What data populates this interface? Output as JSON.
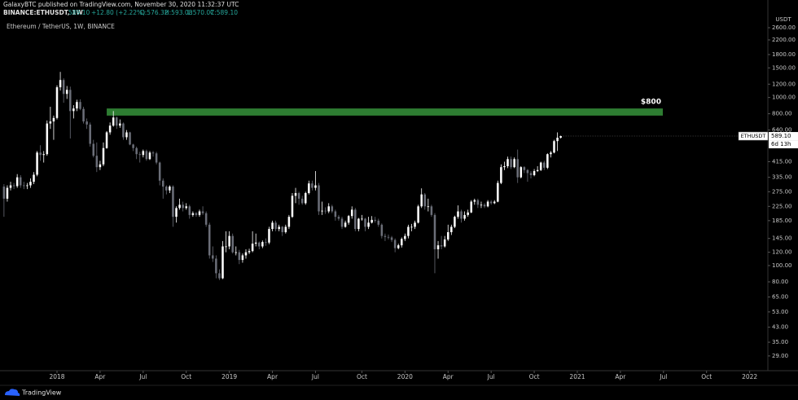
{
  "header": {
    "publisher": "GalaxyBTC published on TradingView.com, November 30, 2020 11:32:37 UTC",
    "symbol": "BINANCE:ETHUSDT, 1W",
    "last": "589.10",
    "change": "+12.80 (+2.22%)",
    "ohlc": [
      "O:576.32",
      "H:593.08",
      "L:570.07",
      "C:589.10"
    ]
  },
  "footer": {
    "brand": "TradingView"
  },
  "chart_data": {
    "type": "candlestick",
    "title": "Ethereum / TetherUS, 1W, BINANCE",
    "y_unit": "USDT",
    "log": true,
    "grid": false,
    "up_color": "#ffffff",
    "down_color": "#6b6e78",
    "ylim": [
      23.7,
      3800
    ],
    "yticks": [
      {
        "value": 2600,
        "label": "2600.00"
      },
      {
        "value": 2200,
        "label": "2200.00"
      },
      {
        "value": 1800,
        "label": "1800.00"
      },
      {
        "value": 1500,
        "label": "1500.00"
      },
      {
        "value": 1200,
        "label": "1200.00"
      },
      {
        "value": 1000,
        "label": "1000.00"
      },
      {
        "value": 800,
        "label": "800.00"
      },
      {
        "value": 640,
        "label": "640.00"
      },
      {
        "value": 415,
        "label": "415.00"
      },
      {
        "value": 335,
        "label": "335.00"
      },
      {
        "value": 275,
        "label": "275.00"
      },
      {
        "value": 225,
        "label": "225.00"
      },
      {
        "value": 185,
        "label": "185.00"
      },
      {
        "value": 145,
        "label": "145.00"
      },
      {
        "value": 120,
        "label": "120.00"
      },
      {
        "value": 100,
        "label": "100.00"
      },
      {
        "value": 80,
        "label": "80.00"
      },
      {
        "value": 65,
        "label": "65.00"
      },
      {
        "value": 53,
        "label": "53.00"
      },
      {
        "value": 43,
        "label": "43.00"
      },
      {
        "value": 35,
        "label": "35.00"
      },
      {
        "value": 29,
        "label": "29.00"
      }
    ],
    "xlim": [
      -1.2,
      230.5
    ],
    "xticks": [
      {
        "value": 16,
        "label": "2018"
      },
      {
        "value": 29,
        "label": "Apr"
      },
      {
        "value": 42,
        "label": "Jul"
      },
      {
        "value": 55,
        "label": "Oct"
      },
      {
        "value": 68,
        "label": "2019"
      },
      {
        "value": 81,
        "label": "Apr"
      },
      {
        "value": 94,
        "label": "Jul"
      },
      {
        "value": 108,
        "label": "Oct"
      },
      {
        "value": 121,
        "label": "2020"
      },
      {
        "value": 134,
        "label": "Apr"
      },
      {
        "value": 147,
        "label": "Jul"
      },
      {
        "value": 160,
        "label": "Oct"
      },
      {
        "value": 173,
        "label": "2021"
      },
      {
        "value": 186,
        "label": "Apr"
      },
      {
        "value": 199,
        "label": "Jul"
      },
      {
        "value": 212,
        "label": "Oct"
      },
      {
        "value": 225,
        "label": "2022"
      }
    ],
    "zone": {
      "label": "$800",
      "low": 780,
      "high": 860,
      "start": 31,
      "end": 198.8,
      "color": "#2e7d32"
    },
    "last_price": {
      "value": 589.1,
      "label": "589.10",
      "symbol": "ETHUSDT",
      "countdown": "6d 13h"
    },
    "open": [
      295,
      250,
      290,
      300,
      297,
      335,
      300,
      298,
      300,
      315,
      347,
      470,
      455,
      460,
      700,
      720,
      755,
      1150,
      1270,
      1050,
      1110,
      830,
      860,
      940,
      855,
      720,
      690,
      530,
      450,
      385,
      400,
      500,
      620,
      680,
      760,
      680,
      700,
      580,
      620,
      525,
      500,
      460,
      455,
      480,
      430,
      470,
      465,
      410,
      320,
      295,
      280,
      295,
      195,
      220,
      230,
      220,
      225,
      200,
      205,
      200,
      210,
      205,
      175,
      115,
      110,
      90,
      84,
      130,
      130,
      150,
      120,
      120,
      108,
      115,
      120,
      122,
      135,
      137,
      130,
      138,
      137,
      165,
      180,
      165,
      170,
      158,
      170,
      195,
      260,
      270,
      250,
      235,
      270,
      308,
      290,
      300,
      210,
      212,
      210,
      225,
      210,
      195,
      190,
      170,
      180,
      197,
      215,
      165,
      190,
      190,
      170,
      180,
      187,
      185,
      175,
      150,
      148,
      147,
      142,
      127,
      132,
      144,
      150,
      170,
      170,
      180,
      225,
      265,
      225,
      225,
      200,
      125,
      132,
      130,
      143,
      158,
      170,
      195,
      210,
      190,
      200,
      207,
      240,
      245,
      230,
      230,
      225,
      240,
      235,
      240,
      310,
      385,
      390,
      430,
      385,
      430,
      335,
      385,
      370,
      355,
      345,
      365,
      370,
      410,
      382,
      460,
      470,
      550,
      576.32
    ],
    "high": [
      305,
      300,
      315,
      310,
      350,
      345,
      315,
      310,
      330,
      360,
      480,
      520,
      480,
      730,
      880,
      780,
      1180,
      1420,
      1300,
      1170,
      1160,
      900,
      970,
      975,
      880,
      750,
      710,
      560,
      540,
      420,
      540,
      630,
      710,
      830,
      770,
      740,
      710,
      640,
      625,
      530,
      510,
      475,
      490,
      490,
      480,
      480,
      475,
      415,
      330,
      300,
      300,
      300,
      225,
      250,
      240,
      235,
      230,
      210,
      208,
      215,
      225,
      210,
      180,
      130,
      115,
      95,
      140,
      160,
      160,
      155,
      130,
      124,
      118,
      125,
      126,
      160,
      155,
      139,
      141,
      145,
      170,
      185,
      185,
      175,
      172,
      175,
      200,
      270,
      290,
      275,
      260,
      275,
      320,
      320,
      365,
      310,
      240,
      222,
      235,
      230,
      215,
      200,
      195,
      185,
      200,
      225,
      220,
      192,
      200,
      192,
      195,
      197,
      195,
      190,
      178,
      155,
      153,
      150,
      145,
      135,
      147,
      155,
      175,
      177,
      185,
      230,
      288,
      270,
      250,
      230,
      205,
      140,
      150,
      150,
      175,
      175,
      198,
      228,
      215,
      210,
      215,
      245,
      250,
      250,
      240,
      235,
      245,
      245,
      245,
      320,
      400,
      415,
      445,
      445,
      440,
      490,
      390,
      390,
      375,
      365,
      375,
      390,
      415,
      420,
      465,
      480,
      560,
      620,
      593.08
    ],
    "low": [
      195,
      240,
      280,
      285,
      290,
      290,
      285,
      285,
      290,
      305,
      340,
      420,
      410,
      450,
      650,
      560,
      740,
      1100,
      930,
      980,
      570,
      750,
      830,
      840,
      700,
      650,
      510,
      440,
      360,
      370,
      390,
      495,
      600,
      670,
      650,
      660,
      560,
      560,
      520,
      480,
      430,
      410,
      440,
      420,
      425,
      445,
      400,
      300,
      250,
      265,
      270,
      170,
      180,
      215,
      210,
      215,
      190,
      195,
      195,
      195,
      200,
      170,
      110,
      105,
      84,
      82,
      83,
      120,
      125,
      118,
      115,
      102,
      104,
      110,
      117,
      120,
      130,
      125,
      127,
      131,
      134,
      160,
      160,
      160,
      150,
      155,
      165,
      192,
      235,
      230,
      230,
      230,
      265,
      280,
      280,
      200,
      200,
      203,
      205,
      205,
      185,
      185,
      165,
      168,
      175,
      190,
      160,
      160,
      185,
      160,
      165,
      178,
      180,
      170,
      145,
      140,
      143,
      138,
      120,
      125,
      128,
      140,
      145,
      160,
      165,
      178,
      220,
      215,
      210,
      195,
      90,
      110,
      125,
      128,
      140,
      152,
      167,
      190,
      180,
      185,
      195,
      205,
      230,
      220,
      220,
      220,
      222,
      230,
      232,
      238,
      305,
      370,
      380,
      375,
      380,
      310,
      330,
      355,
      315,
      330,
      340,
      360,
      365,
      370,
      375,
      440,
      465,
      480,
      570.07
    ],
    "close": [
      250,
      290,
      300,
      297,
      335,
      300,
      298,
      300,
      315,
      347,
      470,
      455,
      460,
      700,
      720,
      755,
      1150,
      1270,
      1050,
      1110,
      830,
      860,
      940,
      855,
      720,
      690,
      530,
      450,
      385,
      400,
      500,
      620,
      680,
      760,
      680,
      700,
      580,
      620,
      525,
      500,
      460,
      455,
      480,
      430,
      470,
      465,
      410,
      320,
      295,
      280,
      295,
      195,
      220,
      230,
      220,
      225,
      200,
      205,
      200,
      210,
      205,
      175,
      115,
      110,
      90,
      84,
      130,
      130,
      150,
      120,
      120,
      108,
      115,
      120,
      122,
      135,
      137,
      130,
      138,
      137,
      165,
      180,
      165,
      170,
      158,
      170,
      195,
      260,
      270,
      250,
      235,
      270,
      308,
      290,
      300,
      210,
      212,
      210,
      225,
      210,
      195,
      190,
      170,
      180,
      197,
      215,
      165,
      190,
      190,
      170,
      180,
      187,
      185,
      175,
      150,
      148,
      147,
      142,
      127,
      132,
      144,
      150,
      170,
      170,
      180,
      225,
      265,
      225,
      225,
      200,
      125,
      132,
      130,
      143,
      158,
      170,
      195,
      210,
      190,
      200,
      207,
      240,
      245,
      230,
      230,
      225,
      240,
      235,
      240,
      310,
      385,
      390,
      430,
      385,
      430,
      335,
      385,
      370,
      355,
      345,
      365,
      370,
      410,
      382,
      460,
      470,
      550,
      576.32,
      589.1
    ]
  }
}
